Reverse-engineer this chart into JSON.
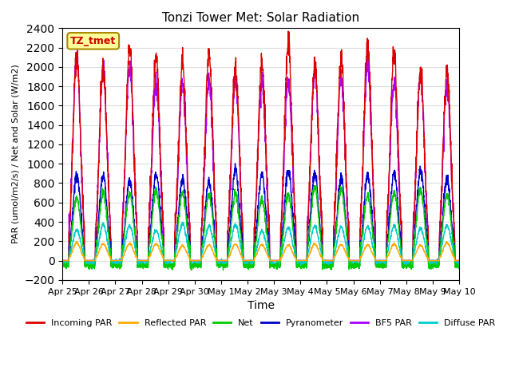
{
  "title": "Tonzi Tower Met: Solar Radiation",
  "xlabel": "Time",
  "ylabel": "PAR (umol/m2/s) / Net and Solar (W/m2)",
  "ylim": [
    -200,
    2400
  ],
  "yticks": [
    -200,
    0,
    200,
    400,
    600,
    800,
    1000,
    1200,
    1400,
    1600,
    1800,
    2000,
    2200,
    2400
  ],
  "x_labels": [
    "Apr 25",
    "Apr 26",
    "Apr 27",
    "Apr 28",
    "Apr 29",
    "Apr 30",
    "May 1",
    "May 2",
    "May 3",
    "May 4",
    "May 5",
    "May 6",
    "May 7",
    "May 8",
    "May 9",
    "May 10"
  ],
  "n_days": 15,
  "series": {
    "incoming_par": {
      "color": "#dd0000",
      "label": "Incoming PAR",
      "peak": 2250,
      "lw": 1.0
    },
    "reflected_par": {
      "color": "#ffaa00",
      "label": "Reflected PAR",
      "peak": 190,
      "lw": 1.0
    },
    "net": {
      "color": "#00cc00",
      "label": "Net",
      "peak": 750,
      "lw": 1.0
    },
    "pyranometer": {
      "color": "#0000cc",
      "label": "Pyranometer",
      "peak": 950,
      "lw": 1.0
    },
    "bf5_par": {
      "color": "#aa00ff",
      "label": "BF5 PAR",
      "peak": 2100,
      "lw": 1.0
    },
    "diffuse_par": {
      "color": "#00cccc",
      "label": "Diffuse PAR",
      "peak": 380,
      "lw": 1.0
    }
  },
  "annotation_text": "TZ_tmet",
  "annotation_color": "#cc0000",
  "annotation_bg": "#ffff99",
  "annotation_border": "#aa8800",
  "background_color": "#ffffff",
  "grid_color": "#dddddd",
  "points_per_day": 144
}
